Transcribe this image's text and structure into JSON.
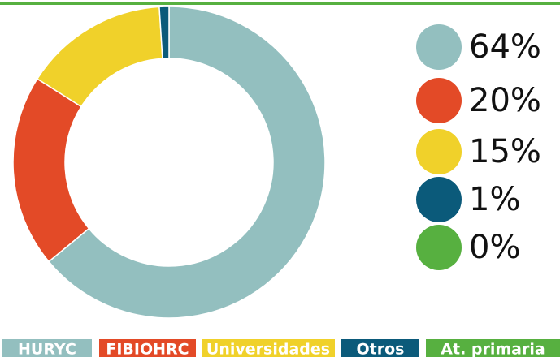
{
  "chart_data": {
    "type": "pie",
    "categories": [
      "HURYC",
      "FIBIOHRC",
      "Universidades",
      "Otros",
      "At. primaria"
    ],
    "values": [
      64,
      20,
      15,
      1,
      0
    ],
    "value_labels": [
      "64%",
      "20%",
      "15%",
      "1%",
      "0%"
    ],
    "colors": [
      "#93bfbf",
      "#e34a27",
      "#f0d12a",
      "#0b5a7a",
      "#57b040"
    ]
  }
}
